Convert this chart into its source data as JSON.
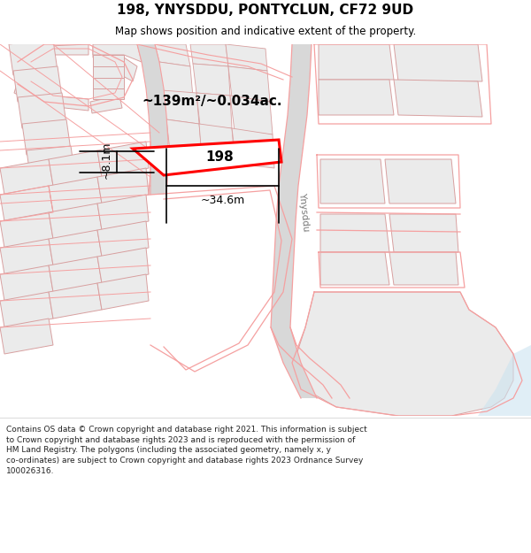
{
  "title_line1": "198, YNYSDDU, PONTYCLUN, CF72 9UD",
  "title_line2": "Map shows position and indicative extent of the property.",
  "copyright_text": "Contains OS data © Crown copyright and database right 2021. This information is subject\nto Crown copyright and database rights 2023 and is reproduced with the permission of\nHM Land Registry. The polygons (including the associated geometry, namely x, y\nco-ordinates) are subject to Crown copyright and database rights 2023 Ordnance Survey\n100026316.",
  "bg_color": "#ffffff",
  "area_label": "~139m²/~0.034ac.",
  "width_label": "~34.6m",
  "height_label": "~8.1m",
  "property_label": "198",
  "road_label": "Ynysddu",
  "highlight_color": "#ff0000",
  "road_color": "#f5a0a0",
  "plot_fill": "#ebebeb",
  "plot_outline": "#d8a0a0",
  "road_strip_fill": "#e0e0e0",
  "water_color": "#cce4f0"
}
